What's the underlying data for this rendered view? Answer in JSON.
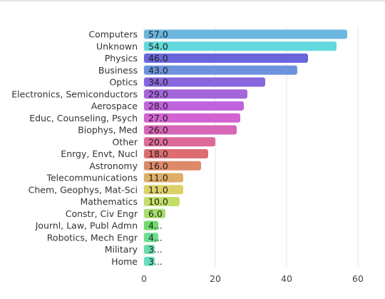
{
  "chart_data": {
    "type": "bar",
    "orientation": "horizontal",
    "title": "",
    "xlabel": "",
    "ylabel": "",
    "xlim": [
      0,
      60
    ],
    "x_ticks": [
      0,
      20,
      40,
      60
    ],
    "grid": "vertical",
    "legend": "none",
    "categories": [
      "Computers",
      "Unknown",
      "Physics",
      "Business",
      "Optics",
      "Electronics, Semiconductors",
      "Aerospace",
      "Educ, Counseling, Psych",
      "Biophys, Med",
      "Other",
      "Enrgy, Envt, Nucl",
      "Astronomy",
      "Telecommunications",
      "Chem, Geophys, Mat-Sci",
      "Mathematics",
      "Constr, Civ Engr",
      "Journl, Law, Publ Admn",
      "Robotics, Mech Engr",
      "Military",
      "Home"
    ],
    "values": [
      57,
      54,
      46,
      43,
      34,
      29,
      28,
      27,
      26,
      20,
      18,
      16,
      11,
      11,
      10,
      6,
      4,
      4,
      3,
      3
    ],
    "value_labels": [
      "57.0",
      "54.0",
      "46.0",
      "43.0",
      "34.0",
      "29.0",
      "28.0",
      "27.0",
      "26.0",
      "20.0",
      "18.0",
      "16.0",
      "11.0",
      "11.0",
      "10.0",
      "6.0",
      "4...",
      "4...",
      "3...",
      "3..."
    ],
    "colors": [
      "#6bb6de",
      "#62d9dc",
      "#6966dc",
      "#6d93de",
      "#8766de",
      "#a566dc",
      "#c263de",
      "#d363d2",
      "#d666b6",
      "#de6a99",
      "#de6d72",
      "#de8a69",
      "#deae69",
      "#dcd169",
      "#c2de69",
      "#a6de69",
      "#6edc6a",
      "#69de8c",
      "#6adcaa",
      "#69dec0"
    ]
  }
}
